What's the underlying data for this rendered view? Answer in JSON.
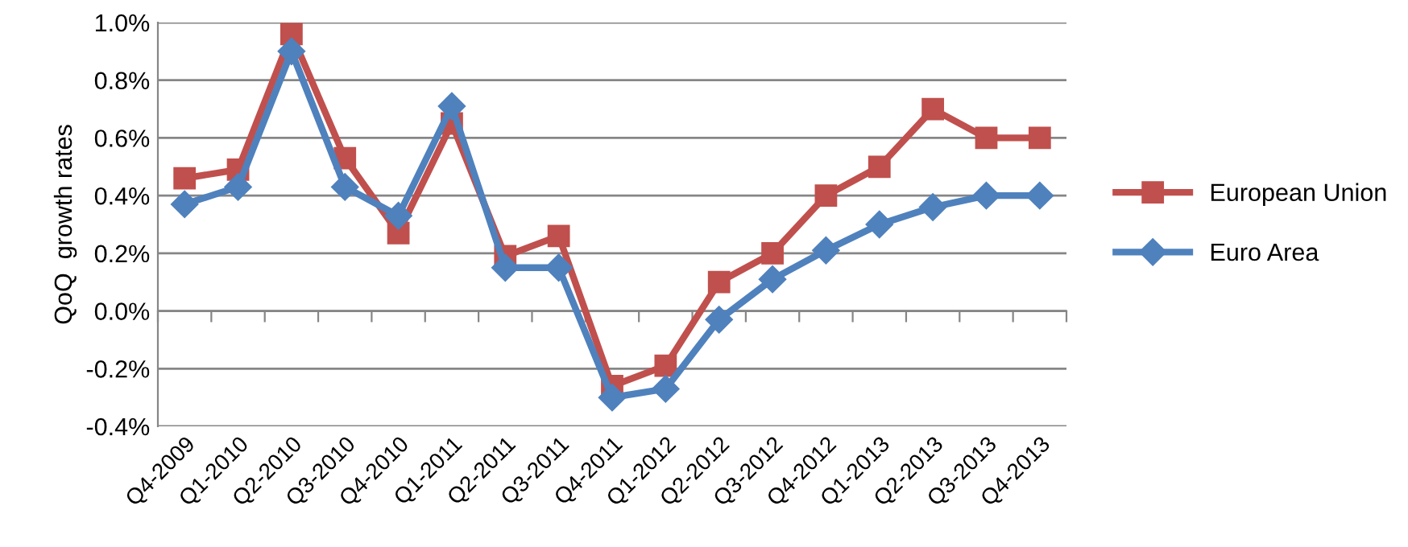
{
  "chart_data": {
    "type": "line",
    "ylabel": "QoQ  growth rates",
    "categories": [
      "Q4-2009",
      "Q1-2010",
      "Q2-2010",
      "Q3-2010",
      "Q4-2010",
      "Q1-2011",
      "Q2-2011",
      "Q3-2011",
      "Q4-2011",
      "Q1-2012",
      "Q2-2012",
      "Q3-2012",
      "Q4-2012",
      "Q1-2013",
      "Q2-2013",
      "Q3-2013",
      "Q4-2013"
    ],
    "series": [
      {
        "name": "European Union",
        "color": "#c0504d",
        "marker": "square",
        "values": [
          0.46,
          0.49,
          0.96,
          0.53,
          0.27,
          0.65,
          0.19,
          0.26,
          -0.26,
          -0.19,
          0.1,
          0.2,
          0.4,
          0.5,
          0.7,
          0.6,
          0.6
        ]
      },
      {
        "name": "Euro Area",
        "color": "#4f81bd",
        "marker": "diamond",
        "values": [
          0.37,
          0.43,
          0.9,
          0.43,
          0.33,
          0.71,
          0.15,
          0.15,
          -0.3,
          -0.27,
          -0.03,
          0.11,
          0.21,
          0.3,
          0.36,
          0.4,
          0.4
        ]
      }
    ],
    "ylim": [
      -0.4,
      1.0
    ],
    "yticks": [
      {
        "value": -0.4,
        "label": "-0.4%"
      },
      {
        "value": -0.2,
        "label": "-0.2%"
      },
      {
        "value": 0,
        "label": "0.0%"
      },
      {
        "value": 0.2,
        "label": "0.2%"
      },
      {
        "value": 0.4,
        "label": "0.4%"
      },
      {
        "value": 0.6,
        "label": "0.6%"
      },
      {
        "value": 0.8,
        "label": "0.8%"
      },
      {
        "value": 1.0,
        "label": "1.0%"
      }
    ],
    "grid": "y",
    "legend": "right",
    "line_style": "solid"
  }
}
